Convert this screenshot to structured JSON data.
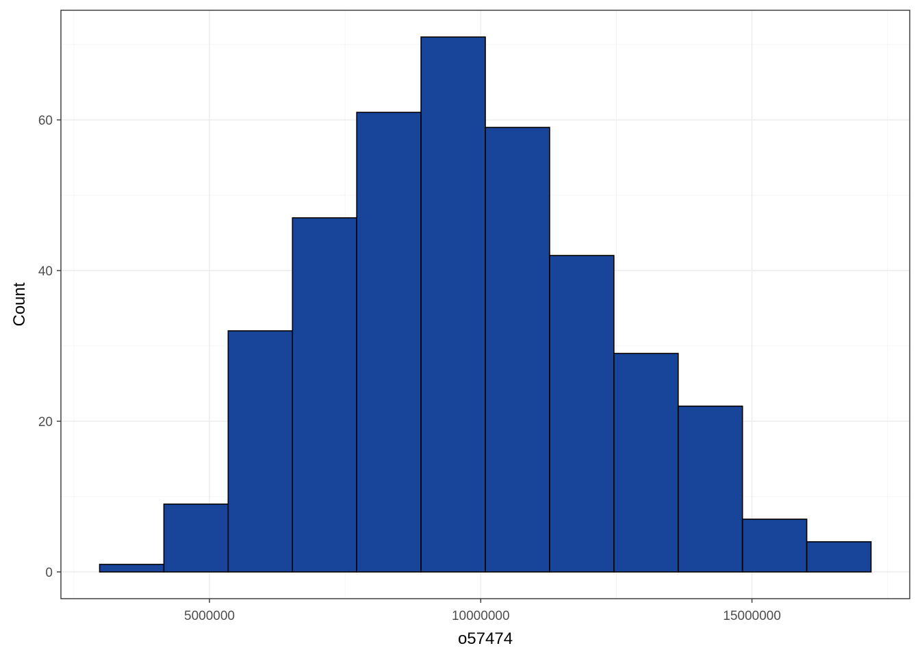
{
  "chart_data": {
    "type": "bar",
    "subtype": "histogram",
    "title": "",
    "xlabel": "o57474",
    "ylabel": "Count",
    "bins": [
      {
        "x0": 2975000,
        "x1": 4160000,
        "count": 1
      },
      {
        "x0": 4160000,
        "x1": 5345000,
        "count": 9
      },
      {
        "x0": 5345000,
        "x1": 6530000,
        "count": 32
      },
      {
        "x0": 6530000,
        "x1": 7715000,
        "count": 47
      },
      {
        "x0": 7715000,
        "x1": 8900000,
        "count": 61
      },
      {
        "x0": 8900000,
        "x1": 10085000,
        "count": 71
      },
      {
        "x0": 10085000,
        "x1": 11270000,
        "count": 59
      },
      {
        "x0": 11270000,
        "x1": 12455000,
        "count": 42
      },
      {
        "x0": 12455000,
        "x1": 13640000,
        "count": 29
      },
      {
        "x0": 13640000,
        "x1": 14825000,
        "count": 22
      },
      {
        "x0": 14825000,
        "x1": 16010000,
        "count": 7
      },
      {
        "x0": 16010000,
        "x1": 17195000,
        "count": 4
      }
    ],
    "x_ticks": [
      {
        "value": 5000000,
        "label": "5000000"
      },
      {
        "value": 10000000,
        "label": "10000000"
      },
      {
        "value": 15000000,
        "label": "15000000"
      }
    ],
    "y_ticks": [
      {
        "value": 0,
        "label": "0"
      },
      {
        "value": 20,
        "label": "20"
      },
      {
        "value": 40,
        "label": "40"
      },
      {
        "value": 60,
        "label": "60"
      }
    ],
    "xlim": [
      2262000,
      17908000
    ],
    "ylim": [
      -3.55,
      74.55
    ],
    "grid": true,
    "colors": {
      "bar_fill": "#184499",
      "bar_stroke": "#000000",
      "panel_border": "#333333"
    }
  }
}
